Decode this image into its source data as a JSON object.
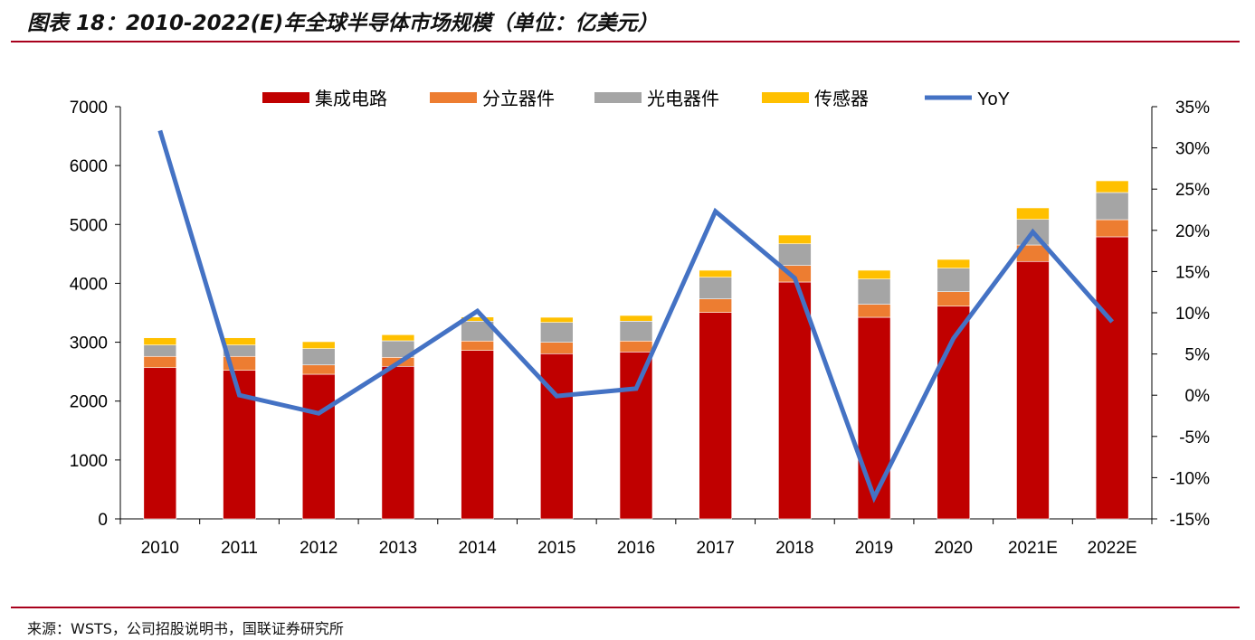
{
  "title": "图表 18：2010-2022(E)年全球半导体市场规模（单位：亿美元）",
  "source": "来源：WSTS，公司招股说明书，国联证券研究所",
  "chart_data": {
    "type": "bar",
    "stacked": true,
    "categories": [
      "2010",
      "2011",
      "2012",
      "2013",
      "2014",
      "2015",
      "2016",
      "2017",
      "2018",
      "2019",
      "2020",
      "2021E",
      "2022E"
    ],
    "series": [
      {
        "name": "集成电路",
        "color": "#c00000",
        "axis": "left",
        "values": [
          2568,
          2522,
          2456,
          2590,
          2860,
          2805,
          2835,
          3505,
          4022,
          3423,
          3612,
          4371,
          4790
        ]
      },
      {
        "name": "分立器件",
        "color": "#ed7d31",
        "axis": "left",
        "values": [
          191,
          237,
          158,
          153,
          160,
          193,
          185,
          230,
          281,
          220,
          246,
          280,
          291
        ]
      },
      {
        "name": "光电器件",
        "color": "#a5a5a5",
        "axis": "left",
        "values": [
          193,
          193,
          277,
          281,
          337,
          338,
          337,
          368,
          368,
          430,
          399,
          435,
          461
        ]
      },
      {
        "name": "传感器",
        "color": "#ffc000",
        "axis": "left",
        "values": [
          123,
          123,
          118,
          103,
          71,
          87,
          97,
          119,
          149,
          149,
          149,
          195,
          199
        ]
      },
      {
        "name": "YoY",
        "type": "line",
        "color": "#4472c4",
        "axis": "right",
        "values": [
          32.1,
          0.0,
          -2.2,
          3.9,
          10.2,
          -0.1,
          0.8,
          22.3,
          14.2,
          -12.4,
          6.9,
          19.8,
          8.9
        ]
      }
    ],
    "left_axis": {
      "ylim": [
        0,
        7000
      ],
      "ticks": [
        0,
        1000,
        2000,
        3000,
        4000,
        5000,
        6000,
        7000
      ]
    },
    "right_axis": {
      "ylim": [
        -15,
        35
      ],
      "ticks": [
        -15,
        -10,
        -5,
        0,
        5,
        10,
        15,
        20,
        25,
        30,
        35
      ],
      "unit": "%"
    },
    "legend": "top",
    "grid": false
  }
}
